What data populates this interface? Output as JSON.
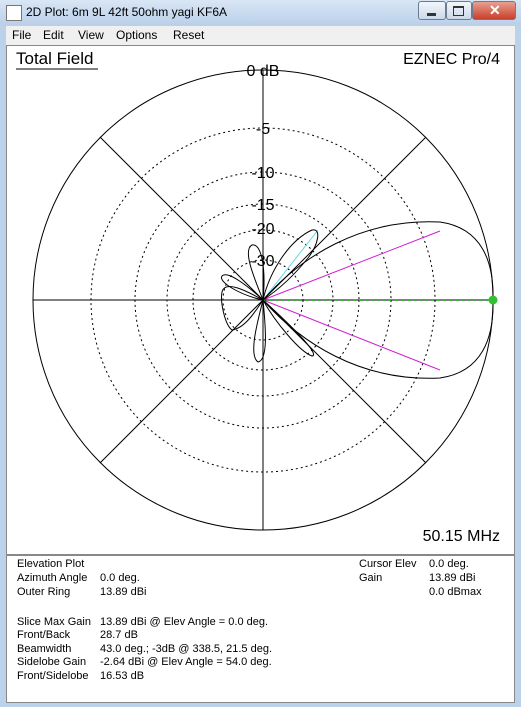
{
  "window": {
    "title": "2D Plot: 6m 9L 42ft 50ohm yagi KF6A"
  },
  "menu": [
    "File",
    "Edit",
    "View",
    "Options",
    "Reset"
  ],
  "plot": {
    "title": "Total Field",
    "program": "EZNEC Pro/4",
    "frequency": "50.15 MHz",
    "ring_labels": [
      "0 dB",
      "-5",
      "-10",
      "-15",
      "-20",
      "-30"
    ]
  },
  "info": {
    "heading": "Elevation Plot",
    "rows": [
      [
        "Azimuth Angle",
        "0.0 deg."
      ],
      [
        "Outer Ring",
        "13.89 dBi"
      ]
    ],
    "results": [
      [
        "Slice Max Gain",
        "13.89 dBi @ Elev Angle = 0.0 deg."
      ],
      [
        "Front/Back",
        "28.7 dB"
      ],
      [
        "Beamwidth",
        "43.0 deg.; -3dB @ 338.5, 21.5 deg."
      ],
      [
        "Sidelobe Gain",
        "-2.64 dBi @ Elev Angle = 54.0 deg."
      ],
      [
        "Front/Sidelobe",
        "16.53 dB"
      ]
    ],
    "cursor": [
      [
        "Cursor Elev",
        "0.0 deg."
      ],
      [
        "Gain",
        "13.89 dBi"
      ]
    ],
    "cursor_extra": "0.0 dBmax"
  }
}
